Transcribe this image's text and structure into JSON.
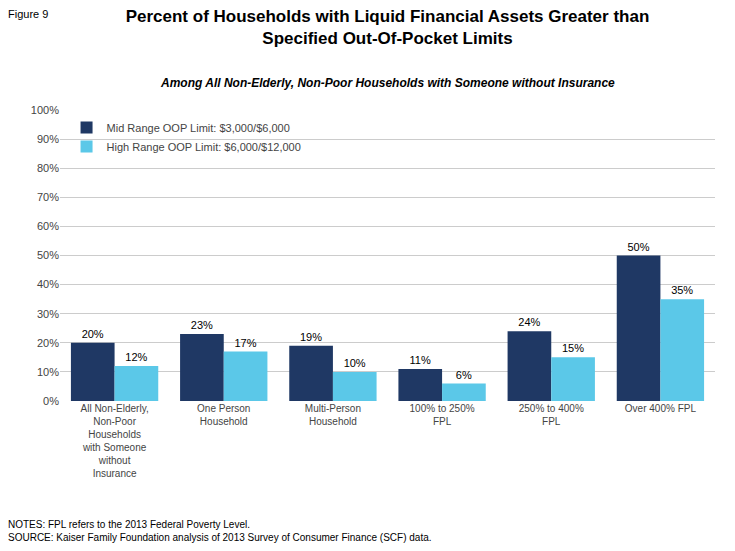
{
  "chart_data": {
    "type": "bar",
    "title": "Percent of Households with Liquid Financial Assets Greater than\nSpecified Out-Of-Pocket Limits",
    "subtitle": "Among All Non-Elderly, Non-Poor Households with Someone without Insurance",
    "annotations": [
      "Figure 9",
      "NOTES: FPL refers to the 2013 Federal Poverty Level.\nSOURCE: Kaiser Family Foundation analysis of 2013 Survey of Consumer Finance (SCF) data."
    ],
    "categories": [
      "All Non-Elderly,\nNon-Poor\nHouseholds\nwith Someone\nwithout\nInsurance",
      "One Person\nHousehold",
      "Multi-Person\nHousehold",
      "100% to 250%\nFPL",
      "250% to 400%\nFPL",
      "Over 400% FPL"
    ],
    "series": [
      {
        "name": "Mid Range OOP Limit: $3,000/$6,000",
        "color": "#1f3864",
        "values": [
          20,
          23,
          19,
          11,
          24,
          50
        ],
        "value_labels": [
          "20%",
          "23%",
          "19%",
          "11%",
          "24%",
          "50%"
        ]
      },
      {
        "name": "High Range OOP Limit: $6,000/$12,000",
        "color": "#5bc8e8",
        "values": [
          12,
          17,
          10,
          6,
          15,
          35
        ],
        "value_labels": [
          "12%",
          "17%",
          "10%",
          "6%",
          "15%",
          "35%"
        ]
      }
    ],
    "ylim": [
      0,
      100
    ],
    "yticks": [
      {
        "value": 0,
        "label": "0%"
      },
      {
        "value": 10,
        "label": "10%"
      },
      {
        "value": 20,
        "label": "20%"
      },
      {
        "value": 30,
        "label": "30%"
      },
      {
        "value": 40,
        "label": "40%"
      },
      {
        "value": 50,
        "label": "50%"
      },
      {
        "value": 60,
        "label": "60%"
      },
      {
        "value": 70,
        "label": "70%"
      },
      {
        "value": 80,
        "label": "80%"
      },
      {
        "value": 90,
        "label": "90%"
      },
      {
        "value": 100,
        "label": "100%"
      }
    ],
    "grid": true,
    "legend": "upper left",
    "data_labels": true
  }
}
